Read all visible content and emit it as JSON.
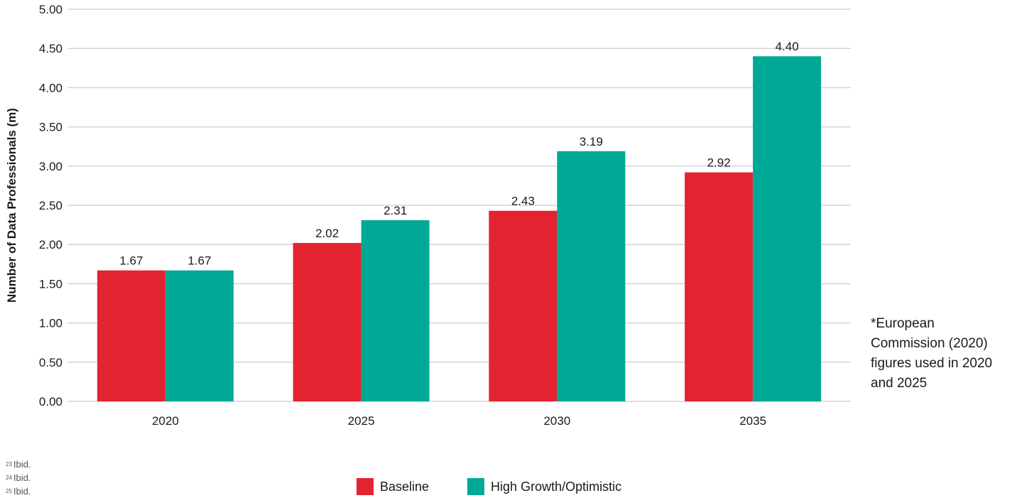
{
  "chart_data": {
    "type": "bar",
    "categories": [
      "2020",
      "2025",
      "2030",
      "2035"
    ],
    "series": [
      {
        "name": "Baseline",
        "color": "#e32430",
        "values": [
          1.67,
          2.02,
          2.43,
          2.92
        ],
        "labels": [
          "1.67",
          "2.02",
          "2.43",
          "2.92"
        ]
      },
      {
        "name": "High Growth/Optimistic",
        "color": "#00a896",
        "values": [
          1.67,
          2.31,
          3.19,
          4.4
        ],
        "labels": [
          "1.67",
          "2.31",
          "3.19",
          "4.40"
        ]
      }
    ],
    "ylabel": "Number of Data Professionals (m)",
    "ylim": [
      0,
      5
    ],
    "yticks": [
      "0.00",
      "0.50",
      "1.00",
      "1.50",
      "2.00",
      "2.50",
      "3.00",
      "3.50",
      "4.00",
      "4.50",
      "5.00"
    ],
    "grid": true,
    "legend_position": "bottom"
  },
  "note": {
    "lines": [
      "*European",
      "Commission (2020)",
      "figures used in 2020",
      "and 2025"
    ]
  },
  "footnotes": [
    {
      "num": "23",
      "text": "Ibid."
    },
    {
      "num": "24",
      "text": "Ibid."
    },
    {
      "num": "25",
      "text": "Ibid."
    }
  ]
}
